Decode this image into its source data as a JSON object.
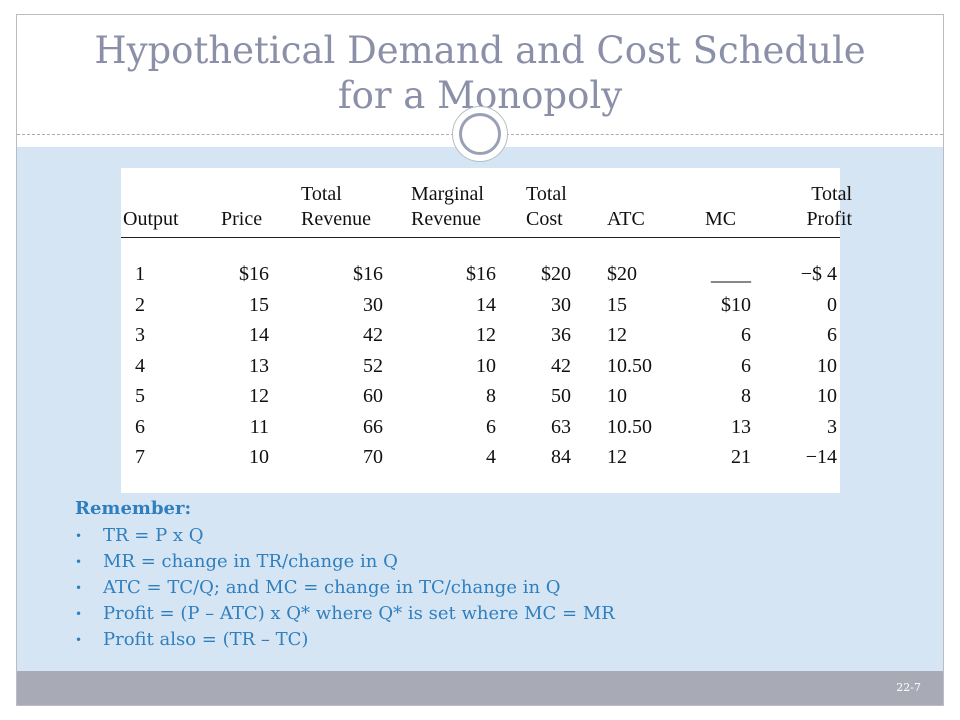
{
  "title": {
    "line1": "Hypothetical Demand and Cost Schedule",
    "line2": "for a Monopoly"
  },
  "table": {
    "headers": [
      {
        "top": "",
        "bottom": "Output"
      },
      {
        "top": "",
        "bottom": "Price"
      },
      {
        "top": "Total",
        "bottom": "Revenue"
      },
      {
        "top": "Marginal",
        "bottom": "Revenue"
      },
      {
        "top": "Total",
        "bottom": "Cost"
      },
      {
        "top": "",
        "bottom": "ATC"
      },
      {
        "top": "",
        "bottom": "MC"
      },
      {
        "top": "Total",
        "bottom": "Profit"
      }
    ],
    "rows": [
      [
        "1",
        "$16",
        "$16",
        "$16",
        "$20",
        "$20",
        "____",
        "−$  4"
      ],
      [
        "2",
        "15",
        "30",
        "14",
        "30",
        "15",
        "$10",
        "0"
      ],
      [
        "3",
        "14",
        "42",
        "12",
        "36",
        "12",
        "6",
        "6"
      ],
      [
        "4",
        "13",
        "52",
        "10",
        "42",
        "10.50",
        "6",
        "10"
      ],
      [
        "5",
        "12",
        "60",
        "8",
        "50",
        "10",
        "8",
        "10"
      ],
      [
        "6",
        "11",
        "66",
        "6",
        "63",
        "10.50",
        "13",
        "3"
      ],
      [
        "7",
        "10",
        "70",
        "4",
        "84",
        "12",
        "21",
        "−14"
      ]
    ]
  },
  "notes": {
    "heading": "Remember:",
    "items": [
      "TR = P x Q",
      "MR = change in TR/change in Q",
      "ATC = TC/Q; and MC = change in TC/change in Q",
      "Profit = (P – ATC) x Q* where Q* is set where MC = MR",
      "Profit also = (TR – TC)"
    ]
  },
  "footer": {
    "page": "22-7"
  }
}
